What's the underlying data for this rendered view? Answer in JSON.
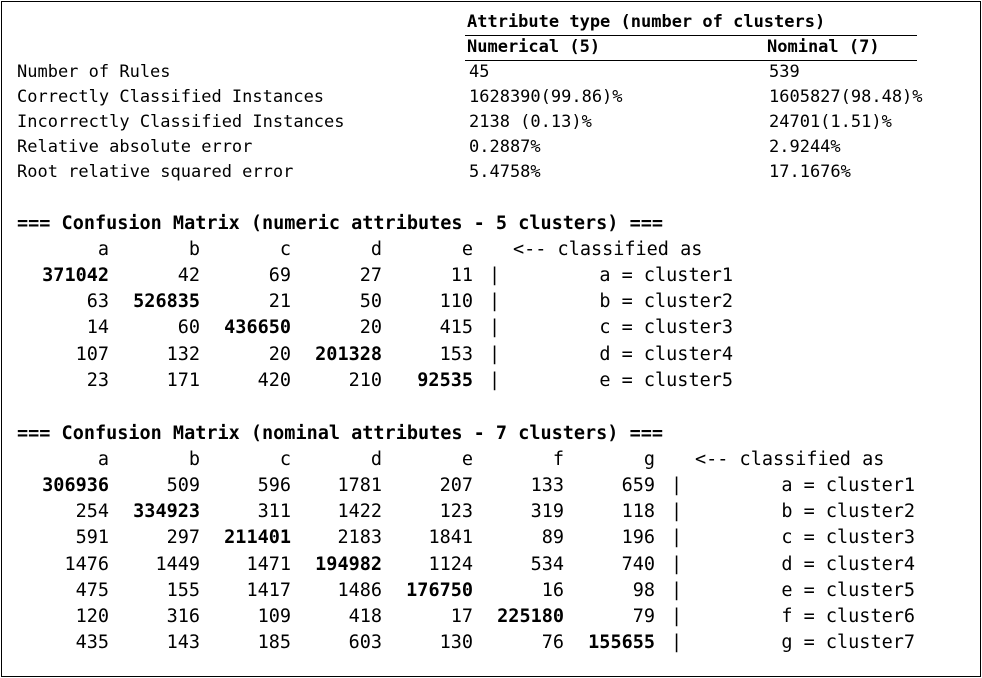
{
  "summary": {
    "title": "Attribute type (number of clusters)",
    "col_numerical": "Numerical (5)",
    "col_nominal": "Nominal (7)",
    "rows": [
      {
        "label": "Number of Rules",
        "numerical": "45",
        "nominal": "539"
      },
      {
        "label": "Correctly Classified Instances",
        "numerical": "1628390(99.86)%",
        "nominal": "1605827(98.48)%"
      },
      {
        "label": "Incorrectly Classified Instances",
        "numerical": "2138 (0.13)%",
        "nominal": "24701(1.51)%"
      },
      {
        "label": "Relative absolute error",
        "numerical": "0.2887%",
        "nominal": "2.9244%"
      },
      {
        "label": "Root relative squared error",
        "numerical": "5.4758%",
        "nominal": "17.1676%"
      }
    ]
  },
  "matrix_numeric": {
    "title": "=== Confusion Matrix (numeric attributes - 5 clusters) ===",
    "columns": [
      "a",
      "b",
      "c",
      "d",
      "e"
    ],
    "classified_as": "<-- classified as",
    "separator": "|",
    "rows": [
      {
        "values": [
          "371042",
          "42",
          "69",
          "27",
          "11"
        ],
        "label": "a = cluster1"
      },
      {
        "values": [
          "63",
          "526835",
          "21",
          "50",
          "110"
        ],
        "label": "b = cluster2"
      },
      {
        "values": [
          "14",
          "60",
          "436650",
          "20",
          "415"
        ],
        "label": "c = cluster3"
      },
      {
        "values": [
          "107",
          "132",
          "20",
          "201328",
          "153"
        ],
        "label": "d = cluster4"
      },
      {
        "values": [
          "23",
          "171",
          "420",
          "210",
          "92535"
        ],
        "label": "e = cluster5"
      }
    ]
  },
  "matrix_nominal": {
    "title": "=== Confusion Matrix (nominal attributes - 7 clusters) ===",
    "columns": [
      "a",
      "b",
      "c",
      "d",
      "e",
      "f",
      "g"
    ],
    "classified_as": "<-- classified as",
    "separator": "|",
    "rows": [
      {
        "values": [
          "306936",
          "509",
          "596",
          "1781",
          "207",
          "133",
          "659"
        ],
        "label": "a = cluster1"
      },
      {
        "values": [
          "254",
          "334923",
          "311",
          "1422",
          "123",
          "319",
          "118"
        ],
        "label": "b = cluster2"
      },
      {
        "values": [
          "591",
          "297",
          "211401",
          "2183",
          "1841",
          "89",
          "196"
        ],
        "label": "c = cluster3"
      },
      {
        "values": [
          "1476",
          "1449",
          "1471",
          "194982",
          "1124",
          "534",
          "740"
        ],
        "label": "d = cluster4"
      },
      {
        "values": [
          "475",
          "155",
          "1417",
          "1486",
          "176750",
          "16",
          "98"
        ],
        "label": "e = cluster5"
      },
      {
        "values": [
          "120",
          "316",
          "109",
          "418",
          "17",
          "225180",
          "79"
        ],
        "label": "f = cluster6"
      },
      {
        "values": [
          "435",
          "143",
          "185",
          "603",
          "130",
          "76",
          "155655"
        ],
        "label": "g = cluster7"
      }
    ]
  }
}
